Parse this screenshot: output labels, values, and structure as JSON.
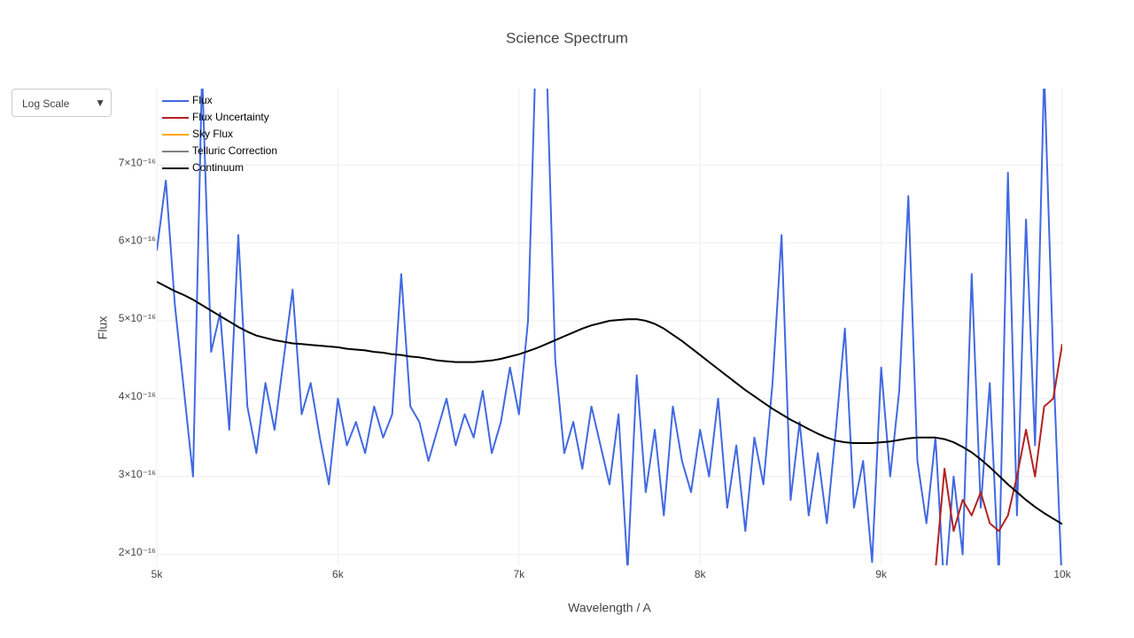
{
  "chart_data": {
    "type": "line",
    "title": "Science Spectrum",
    "xlabel": "Wavelength / A",
    "ylabel": "Flux",
    "menu_label": "Log Scale",
    "x": [
      5000,
      5050,
      5100,
      5150,
      5200,
      5250,
      5300,
      5350,
      5400,
      5450,
      5500,
      5550,
      5600,
      5650,
      5700,
      5750,
      5800,
      5850,
      5900,
      5950,
      6000,
      6050,
      6100,
      6150,
      6200,
      6250,
      6300,
      6350,
      6400,
      6450,
      6500,
      6550,
      6600,
      6650,
      6700,
      6750,
      6800,
      6850,
      6900,
      6950,
      7000,
      7050,
      7100,
      7150,
      7200,
      7250,
      7300,
      7350,
      7400,
      7450,
      7500,
      7550,
      7600,
      7650,
      7700,
      7750,
      7800,
      7850,
      7900,
      7950,
      8000,
      8050,
      8100,
      8150,
      8200,
      8250,
      8300,
      8350,
      8400,
      8450,
      8500,
      8550,
      8600,
      8650,
      8700,
      8750,
      8800,
      8850,
      8900,
      8950,
      9000,
      9050,
      9100,
      9150,
      9200,
      9250,
      9300,
      9350,
      9400,
      9450,
      9500,
      9550,
      9600,
      9650,
      9700,
      9750,
      9800,
      9850,
      9900,
      9950,
      10000
    ],
    "series": [
      {
        "name": "Flux",
        "color": "#4169e1",
        "values": [
          5.9e-16,
          6.8e-16,
          5.2e-16,
          4.1e-16,
          3e-16,
          8.2e-16,
          4.6e-16,
          5.1e-16,
          3.6e-16,
          6.1e-16,
          3.9e-16,
          3.3e-16,
          4.2e-16,
          3.6e-16,
          4.5e-16,
          5.4e-16,
          3.8e-16,
          4.2e-16,
          3.5e-16,
          2.9e-16,
          4e-16,
          3.4e-16,
          3.7e-16,
          3.3e-16,
          3.9e-16,
          3.5e-16,
          3.8e-16,
          5.6e-16,
          3.9e-16,
          3.7e-16,
          3.2e-16,
          3.6e-16,
          4e-16,
          3.4e-16,
          3.8e-16,
          3.5e-16,
          4.1e-16,
          3.3e-16,
          3.7e-16,
          4.4e-16,
          3.8e-16,
          5e-16,
          9e-16,
          8.5e-16,
          4.5e-16,
          3.3e-16,
          3.7e-16,
          3.1e-16,
          3.9e-16,
          3.4e-16,
          2.9e-16,
          3.8e-16,
          1.8e-16,
          4.3e-16,
          2.8e-16,
          3.6e-16,
          2.5e-16,
          3.9e-16,
          3.2e-16,
          2.8e-16,
          3.6e-16,
          3e-16,
          4e-16,
          2.6e-16,
          3.4e-16,
          2.3e-16,
          3.5e-16,
          2.9e-16,
          4.2e-16,
          6.1e-16,
          2.7e-16,
          3.7e-16,
          2.5e-16,
          3.3e-16,
          2.4e-16,
          3.6e-16,
          4.9e-16,
          2.6e-16,
          3.2e-16,
          1.9e-16,
          4.4e-16,
          3e-16,
          4.1e-16,
          6.6e-16,
          3.2e-16,
          2.4e-16,
          3.5e-16,
          1.5e-16,
          3e-16,
          2e-16,
          5.6e-16,
          2.6e-16,
          4.2e-16,
          1.7e-16,
          6.9e-16,
          2.5e-16,
          6.3e-16,
          3.4e-16,
          8.2e-16,
          4.5e-16,
          1.5e-16
        ]
      },
      {
        "name": "Flux Uncertainty",
        "color": "#b22222",
        "x": [
          9300,
          9350,
          9400,
          9450,
          9500,
          9550,
          9600,
          9650,
          9700,
          9750,
          9800,
          9850,
          9900,
          9950,
          10000
        ],
        "values": [
          1.8e-16,
          3.1e-16,
          2.3e-16,
          2.7e-16,
          2.5e-16,
          2.8e-16,
          2.4e-16,
          2.3e-16,
          2.5e-16,
          3e-16,
          3.6e-16,
          3e-16,
          3.9e-16,
          4e-16,
          4.7e-16
        ]
      },
      {
        "name": "Sky Flux",
        "color": "#ffa500"
      },
      {
        "name": "Telluric Correction",
        "color": "#808080"
      },
      {
        "name": "Continuum",
        "color": "#000000",
        "values": [
          5.5e-16,
          5.44e-16,
          5.38e-16,
          5.33e-16,
          5.27e-16,
          5.2e-16,
          5.13e-16,
          5.06e-16,
          4.99e-16,
          4.92e-16,
          4.86e-16,
          4.81e-16,
          4.78e-16,
          4.75e-16,
          4.73e-16,
          4.71e-16,
          4.7e-16,
          4.69e-16,
          4.68e-16,
          4.67e-16,
          4.66e-16,
          4.64e-16,
          4.63e-16,
          4.62e-16,
          4.6e-16,
          4.59e-16,
          4.57e-16,
          4.56e-16,
          4.54e-16,
          4.53e-16,
          4.51e-16,
          4.49e-16,
          4.48e-16,
          4.47e-16,
          4.47e-16,
          4.47e-16,
          4.48e-16,
          4.49e-16,
          4.51e-16,
          4.54e-16,
          4.57e-16,
          4.61e-16,
          4.65e-16,
          4.7e-16,
          4.75e-16,
          4.8e-16,
          4.85e-16,
          4.9e-16,
          4.94e-16,
          4.97e-16,
          5e-16,
          5.01e-16,
          5.02e-16,
          5.02e-16,
          5e-16,
          4.96e-16,
          4.9e-16,
          4.82e-16,
          4.74e-16,
          4.65e-16,
          4.56e-16,
          4.47e-16,
          4.38e-16,
          4.29e-16,
          4.2e-16,
          4.11e-16,
          4.03e-16,
          3.95e-16,
          3.87e-16,
          3.8e-16,
          3.73e-16,
          3.67e-16,
          3.61e-16,
          3.55e-16,
          3.5e-16,
          3.46e-16,
          3.44e-16,
          3.43e-16,
          3.43e-16,
          3.43e-16,
          3.44e-16,
          3.45e-16,
          3.47e-16,
          3.49e-16,
          3.5e-16,
          3.5e-16,
          3.5e-16,
          3.48e-16,
          3.44e-16,
          3.38e-16,
          3.31e-16,
          3.22e-16,
          3.12e-16,
          3.01e-16,
          2.9e-16,
          2.8e-16,
          2.7e-16,
          2.61e-16,
          2.53e-16,
          2.46e-16,
          2.39e-16
        ]
      }
    ],
    "xlim": [
      5000,
      10000
    ],
    "xticks": [
      {
        "value": 5000,
        "label": "5k"
      },
      {
        "value": 6000,
        "label": "6k"
      },
      {
        "value": 7000,
        "label": "7k"
      },
      {
        "value": 8000,
        "label": "8k"
      },
      {
        "value": 9000,
        "label": "9k"
      },
      {
        "value": 10000,
        "label": "10k"
      }
    ],
    "ylim": [
      1.86e-16,
      7.98e-16
    ],
    "yticks": [
      {
        "value": 2e-16,
        "label": "2×10⁻¹⁶"
      },
      {
        "value": 3e-16,
        "label": "3×10⁻¹⁶"
      },
      {
        "value": 4e-16,
        "label": "4×10⁻¹⁶"
      },
      {
        "value": 5e-16,
        "label": "5×10⁻¹⁶"
      },
      {
        "value": 6e-16,
        "label": "6×10⁻¹⁶"
      },
      {
        "value": 7e-16,
        "label": "7×10⁻¹⁶"
      }
    ],
    "grid": true,
    "legend": "top-left"
  }
}
